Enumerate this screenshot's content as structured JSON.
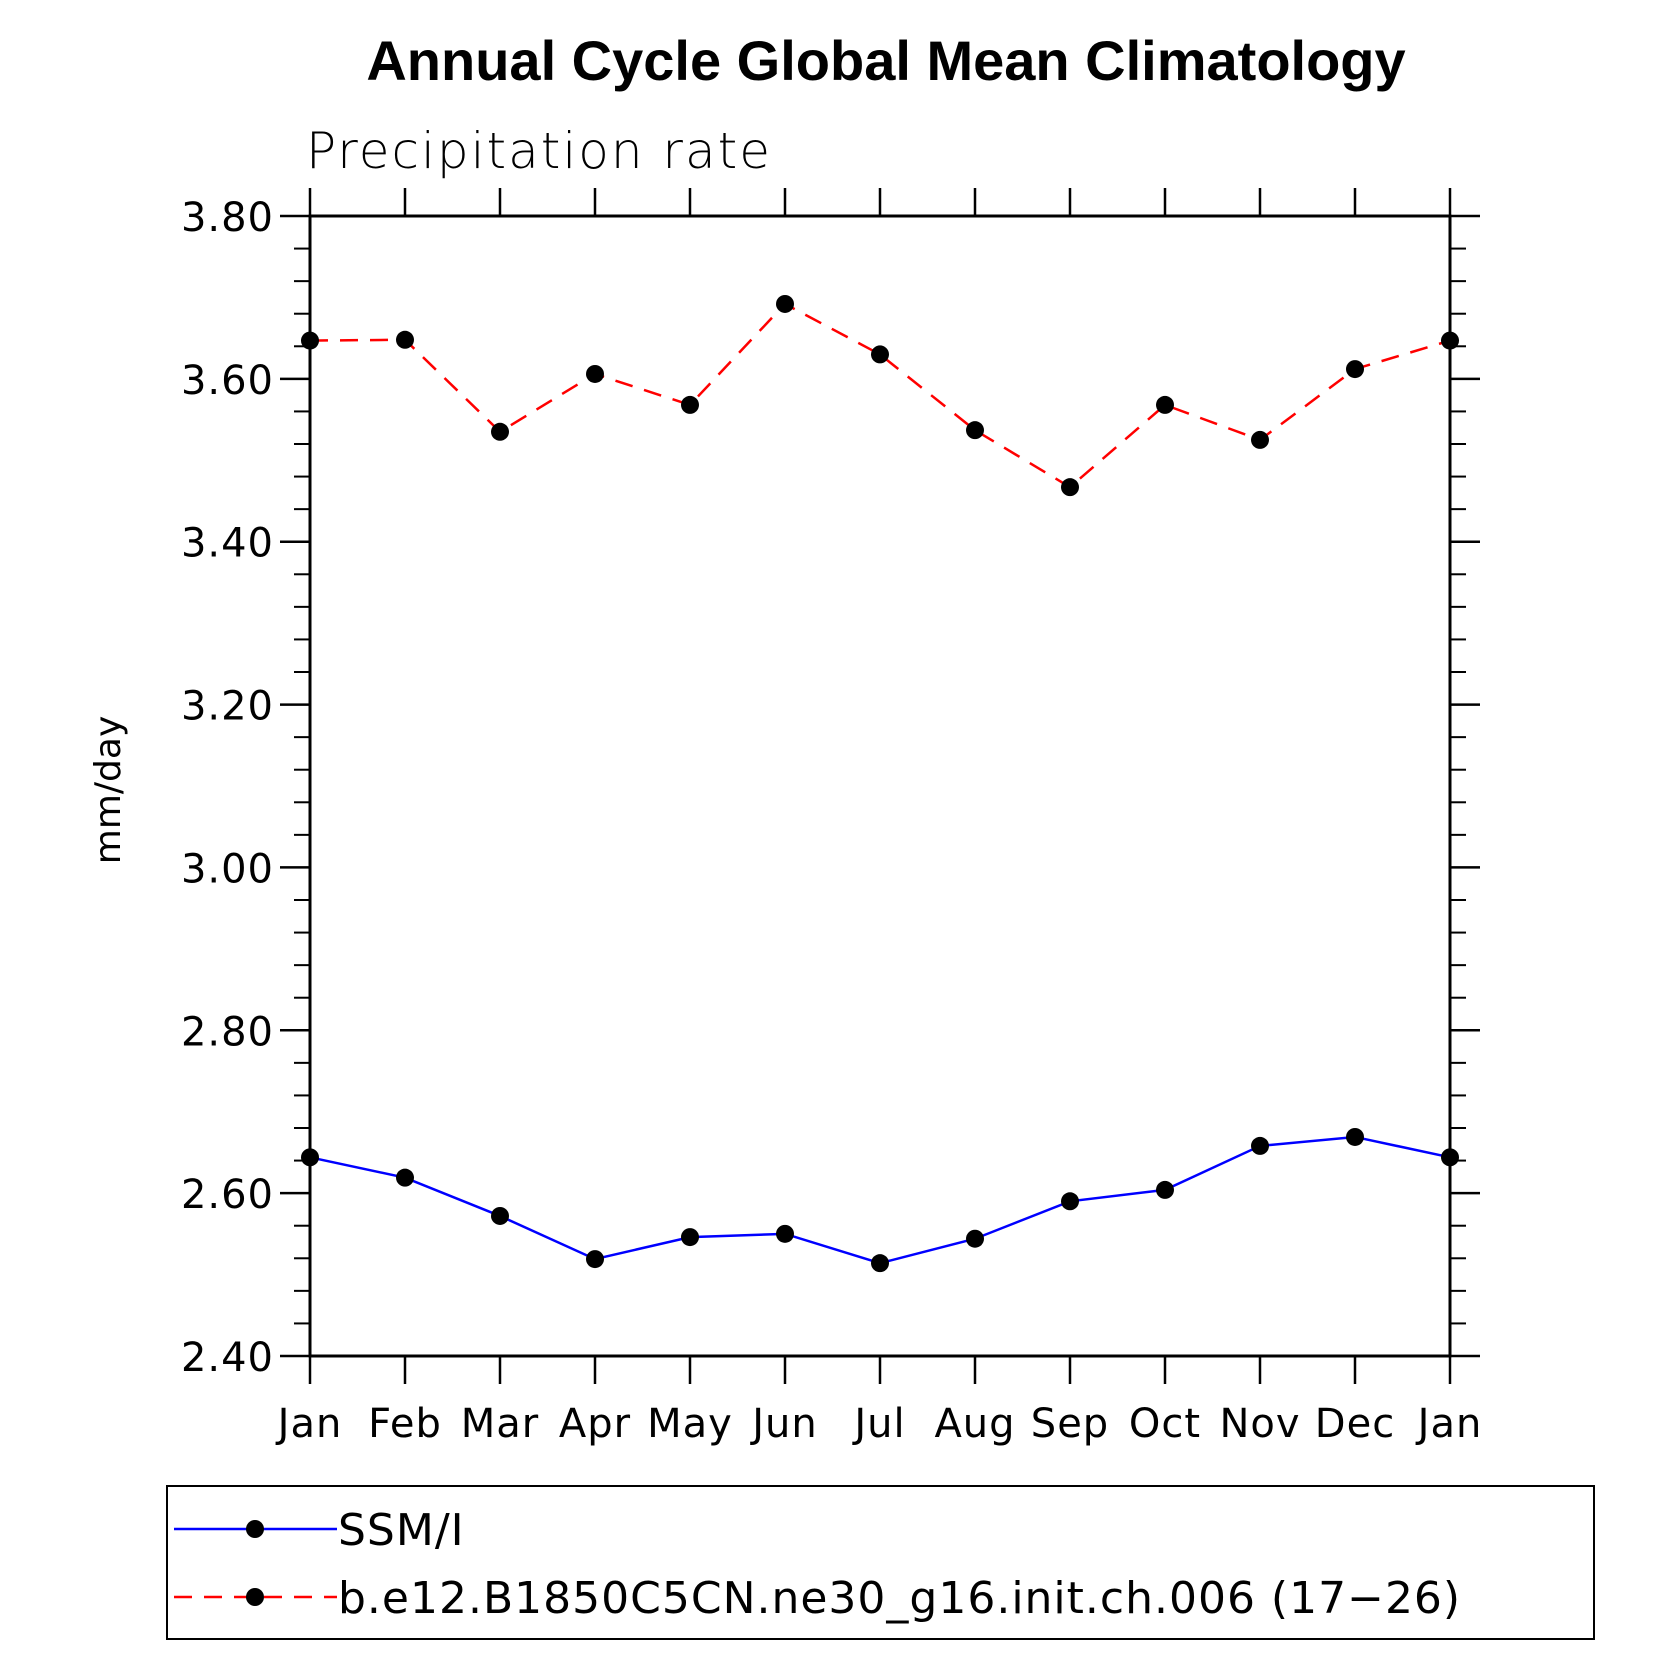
{
  "chart_data": {
    "type": "line",
    "title": "Annual Cycle Global Mean Climatology",
    "subtitle": "Precipitation rate",
    "xlabel": "",
    "ylabel": "mm/day",
    "categories": [
      "Jan",
      "Feb",
      "Mar",
      "Apr",
      "May",
      "Jun",
      "Jul",
      "Aug",
      "Sep",
      "Oct",
      "Nov",
      "Dec",
      "Jan"
    ],
    "ylim": [
      2.4,
      3.8
    ],
    "yticks": [
      "2.40",
      "2.60",
      "2.80",
      "3.00",
      "3.20",
      "3.40",
      "3.60",
      "3.80"
    ],
    "ytick_values": [
      2.4,
      2.6,
      2.8,
      3.0,
      3.2,
      3.4,
      3.6,
      3.8
    ],
    "series": [
      {
        "name": "SSM/I",
        "color": "#0000ff",
        "dash": "solid",
        "marker": "filled-circle",
        "values": [
          2.644,
          2.619,
          2.572,
          2.519,
          2.546,
          2.55,
          2.514,
          2.544,
          2.59,
          2.604,
          2.658,
          2.669,
          2.644
        ]
      },
      {
        "name": "b.e12.B1850C5CN.ne30_g16.init.ch.006 (17−26)",
        "color": "#ff0000",
        "dash": "dashed",
        "marker": "filled-circle",
        "values": [
          3.647,
          3.648,
          3.535,
          3.606,
          3.568,
          3.692,
          3.63,
          3.537,
          3.467,
          3.568,
          3.525,
          3.612,
          3.647
        ]
      }
    ]
  }
}
